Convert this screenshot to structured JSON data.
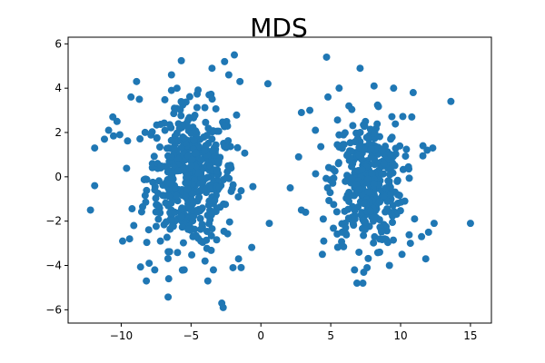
{
  "chart_data": {
    "type": "scatter",
    "title": "MDS",
    "xlabel": "",
    "ylabel": "",
    "xlim": [
      -13.8,
      16.5
    ],
    "ylim": [
      -6.6,
      6.3
    ],
    "xticks": [
      -10,
      -5,
      0,
      5,
      10,
      15
    ],
    "yticks": [
      -6,
      -4,
      -2,
      0,
      2,
      4,
      6
    ],
    "grid": false,
    "marker_color": "#1f77b4",
    "clusters": [
      {
        "name": "",
        "count": 480,
        "center": [
          -5.0,
          0.0
        ],
        "spread": [
          2.9,
          2.0
        ],
        "xrange": [
          -12.2,
          0.6
        ],
        "yrange": [
          -5.9,
          5.6
        ]
      },
      {
        "name": "",
        "count": 360,
        "center": [
          7.6,
          -0.2
        ],
        "spread": [
          2.3,
          1.8
        ],
        "xrange": [
          2.5,
          15.0
        ],
        "yrange": [
          -4.8,
          5.5
        ]
      }
    ],
    "points": [
      [
        -12.2,
        -1.5
      ],
      [
        -11.9,
        -0.4
      ],
      [
        -11.9,
        1.3
      ],
      [
        -11.2,
        1.7
      ],
      [
        -10.6,
        2.7
      ],
      [
        -10.3,
        2.5
      ],
      [
        -10.1,
        1.9
      ],
      [
        -9.9,
        -2.9
      ],
      [
        -9.4,
        -2.8
      ],
      [
        -9.3,
        3.6
      ],
      [
        -8.9,
        4.3
      ],
      [
        -8.7,
        3.5
      ],
      [
        -8.2,
        -4.7
      ],
      [
        -8.0,
        -3.9
      ],
      [
        -7.6,
        -4.2
      ],
      [
        -6.6,
        -4.6
      ],
      [
        -6.4,
        4.6
      ],
      [
        -6.4,
        3.9
      ],
      [
        -4.0,
        -3.8
      ],
      [
        -3.8,
        -4.7
      ],
      [
        -3.5,
        4.9
      ],
      [
        -3.4,
        -4.2
      ],
      [
        -2.8,
        -5.7
      ],
      [
        -2.7,
        -5.9
      ],
      [
        -2.6,
        5.2
      ],
      [
        -2.3,
        4.6
      ],
      [
        -1.9,
        5.5
      ],
      [
        -1.6,
        -3.7
      ],
      [
        -1.5,
        4.3
      ],
      [
        0.5,
        4.2
      ],
      [
        0.6,
        -2.1
      ],
      [
        -10.9,
        2.1
      ],
      [
        -9.1,
        -2.2
      ],
      [
        -4.3,
        -2.9
      ],
      [
        -2.0,
        -4.1
      ],
      [
        2.1,
        -0.5
      ],
      [
        2.9,
        2.9
      ],
      [
        2.7,
        0.9
      ],
      [
        3.2,
        -1.6
      ],
      [
        3.5,
        3.0
      ],
      [
        3.9,
        2.1
      ],
      [
        4.4,
        -3.5
      ],
      [
        4.5,
        -2.9
      ],
      [
        4.7,
        5.4
      ],
      [
        4.8,
        3.6
      ],
      [
        5.6,
        4.0
      ],
      [
        6.7,
        -4.2
      ],
      [
        7.1,
        4.9
      ],
      [
        7.3,
        -4.8
      ],
      [
        7.6,
        -4.1
      ],
      [
        8.1,
        4.1
      ],
      [
        8.5,
        -3.4
      ],
      [
        9.2,
        -4.0
      ],
      [
        9.5,
        4.0
      ],
      [
        10.1,
        -3.5
      ],
      [
        10.9,
        3.8
      ],
      [
        11.8,
        -3.7
      ],
      [
        12.0,
        -2.5
      ],
      [
        12.4,
        -2.1
      ],
      [
        13.6,
        3.4
      ],
      [
        15.0,
        -2.1
      ],
      [
        11.6,
        1.4
      ],
      [
        11.9,
        1.2
      ],
      [
        10.8,
        2.7
      ],
      [
        11.0,
        -1.9
      ],
      [
        2.9,
        -1.5
      ],
      [
        12.3,
        1.3
      ],
      [
        11.5,
        -2.7
      ],
      [
        10.7,
        -3.0
      ],
      [
        6.3,
        3.2
      ]
    ]
  }
}
